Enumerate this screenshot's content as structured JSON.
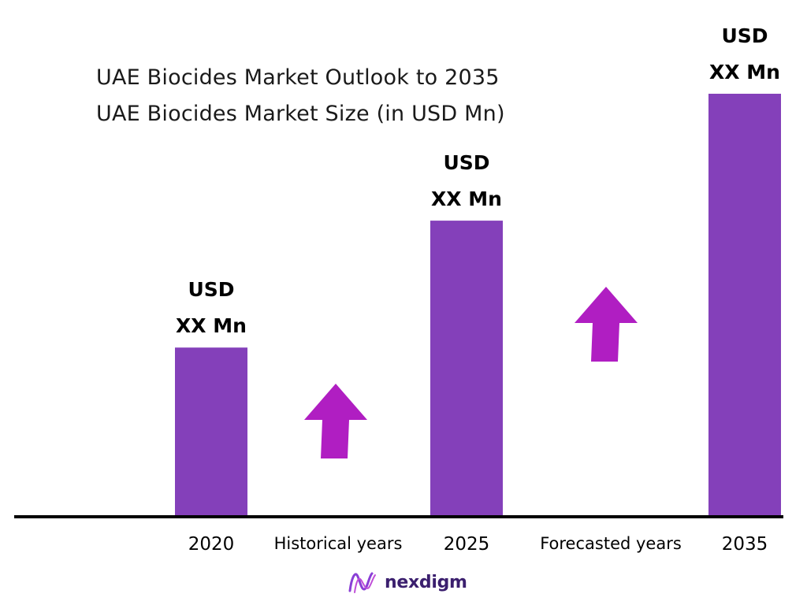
{
  "title": "UAE Biocides Market Outlook to 2035",
  "subtitle": "UAE Biocides Market Size (in USD Mn)",
  "chart_data": {
    "type": "bar",
    "categories": [
      "2020",
      "2025",
      "2035"
    ],
    "values": [
      1,
      1.75,
      2.5
    ],
    "data_labels": [
      {
        "line1": "USD",
        "line2": "XX Mn"
      },
      {
        "line1": "USD",
        "line2": "XX Mn"
      },
      {
        "line1": "USD",
        "line2": "XX Mn"
      }
    ],
    "period_labels": [
      "Historical years",
      "Forecasted years"
    ],
    "ylim": [
      0,
      2.5
    ],
    "grid": false,
    "legend": "none",
    "bar_color": "#8440BA",
    "arrow_color": "#B01EC2",
    "axis_color": "#000000"
  },
  "brand": {
    "name": "nexdigm",
    "icon": "nexdigm-logo-icon",
    "color": "#3b1f6e"
  }
}
